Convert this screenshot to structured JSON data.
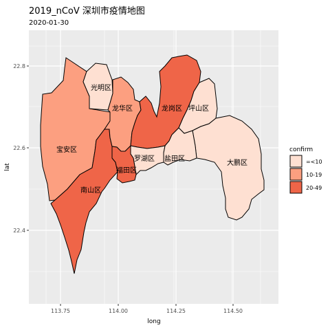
{
  "title": "2019_nCoV 深圳市疫情地图",
  "subtitle": "2020-01-30",
  "chart_data": {
    "type": "choropleth",
    "xlabel": "long",
    "ylabel": "lat",
    "x_ticks": [
      "113.75",
      "114.00",
      "114.25",
      "114.50"
    ],
    "y_ticks": [
      "22.4",
      "22.6",
      "22.8"
    ],
    "legend": {
      "title": "confirm",
      "placement": "right",
      "items": [
        {
          "label": "=<10",
          "color": "#fee0d2"
        },
        {
          "label": "10-19",
          "color": "#fc9f80"
        },
        {
          "label": "20-49",
          "color": "#ef6548"
        }
      ]
    },
    "regions": [
      {
        "name": "光明区",
        "confirm_bin": "=<10",
        "color": "#fee0d2"
      },
      {
        "name": "龙华区",
        "confirm_bin": "10-19",
        "color": "#fc9f80"
      },
      {
        "name": "龙岗区",
        "confirm_bin": "20-49",
        "color": "#ef6548"
      },
      {
        "name": "坪山区",
        "confirm_bin": "=<10",
        "color": "#fee0d2"
      },
      {
        "name": "宝安区",
        "confirm_bin": "10-19",
        "color": "#fc9f80"
      },
      {
        "name": "罗湖区",
        "confirm_bin": "=<10",
        "color": "#fee0d2"
      },
      {
        "name": "盐田区",
        "confirm_bin": "=<10",
        "color": "#fee0d2"
      },
      {
        "name": "大鹏区",
        "confirm_bin": "=<10",
        "color": "#fee0d2"
      },
      {
        "name": "福田区",
        "confirm_bin": "20-49",
        "color": "#ef6548"
      },
      {
        "name": "南山区",
        "confirm_bin": "20-49",
        "color": "#ef6548"
      }
    ]
  }
}
